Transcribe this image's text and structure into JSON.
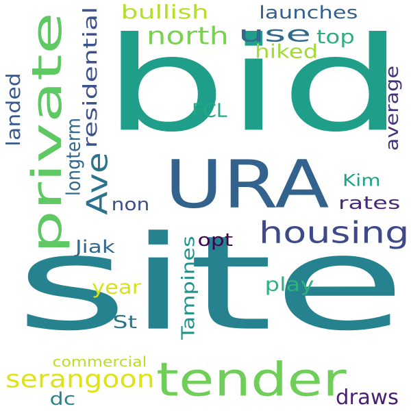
{
  "words": [
    {
      "text": "bid",
      "color": "#1f9e89",
      "orientation": "horizontal"
    },
    {
      "text": "site",
      "color": "#26828e",
      "orientation": "horizontal"
    },
    {
      "text": "URA",
      "color": "#33638d",
      "orientation": "horizontal"
    },
    {
      "text": "tender",
      "color": "#6ece58",
      "orientation": "horizontal"
    },
    {
      "text": "private",
      "color": "#5ec962",
      "orientation": "vertical"
    },
    {
      "text": "housing",
      "color": "#3e4989",
      "orientation": "horizontal"
    },
    {
      "text": "Ave",
      "color": "#2c728e",
      "orientation": "vertical"
    },
    {
      "text": "north",
      "color": "#7ad151",
      "orientation": "horizontal"
    },
    {
      "text": "use",
      "color": "#31688e",
      "orientation": "horizontal"
    },
    {
      "text": "serangoon",
      "color": "#dde318",
      "orientation": "horizontal"
    },
    {
      "text": "bullish",
      "color": "#b5de2b",
      "orientation": "horizontal"
    },
    {
      "text": "launches",
      "color": "#35608d",
      "orientation": "horizontal"
    },
    {
      "text": "top",
      "color": "#29af7f",
      "orientation": "horizontal"
    },
    {
      "text": "hiked",
      "color": "#a2da37",
      "orientation": "horizontal"
    },
    {
      "text": "residential",
      "color": "#3b528b",
      "orientation": "vertical"
    },
    {
      "text": "landed",
      "color": "#38598c",
      "orientation": "vertical"
    },
    {
      "text": "longterm",
      "color": "#31688e",
      "orientation": "vertical"
    },
    {
      "text": "FCL",
      "color": "#22a884",
      "orientation": "horizontal"
    },
    {
      "text": "average",
      "color": "#46337e",
      "orientation": "vertical"
    },
    {
      "text": "Kim",
      "color": "#1fa187",
      "orientation": "horizontal"
    },
    {
      "text": "rates",
      "color": "#482878",
      "orientation": "horizontal"
    },
    {
      "text": "non",
      "color": "#3b528b",
      "orientation": "horizontal"
    },
    {
      "text": "opt",
      "color": "#440154",
      "orientation": "horizontal"
    },
    {
      "text": "Jiak",
      "color": "#31688e",
      "orientation": "horizontal"
    },
    {
      "text": "Tampines",
      "color": "#20928c",
      "orientation": "vertical"
    },
    {
      "text": "play",
      "color": "#2db27d",
      "orientation": "horizontal"
    },
    {
      "text": "year",
      "color": "#d8e219",
      "orientation": "horizontal"
    },
    {
      "text": "St",
      "color": "#2c728e",
      "orientation": "horizontal"
    },
    {
      "text": "commercial",
      "color": "#b8de29",
      "orientation": "horizontal"
    },
    {
      "text": "dc",
      "color": "#25848e",
      "orientation": "horizontal"
    },
    {
      "text": "draws",
      "color": "#481f70",
      "orientation": "horizontal"
    }
  ]
}
